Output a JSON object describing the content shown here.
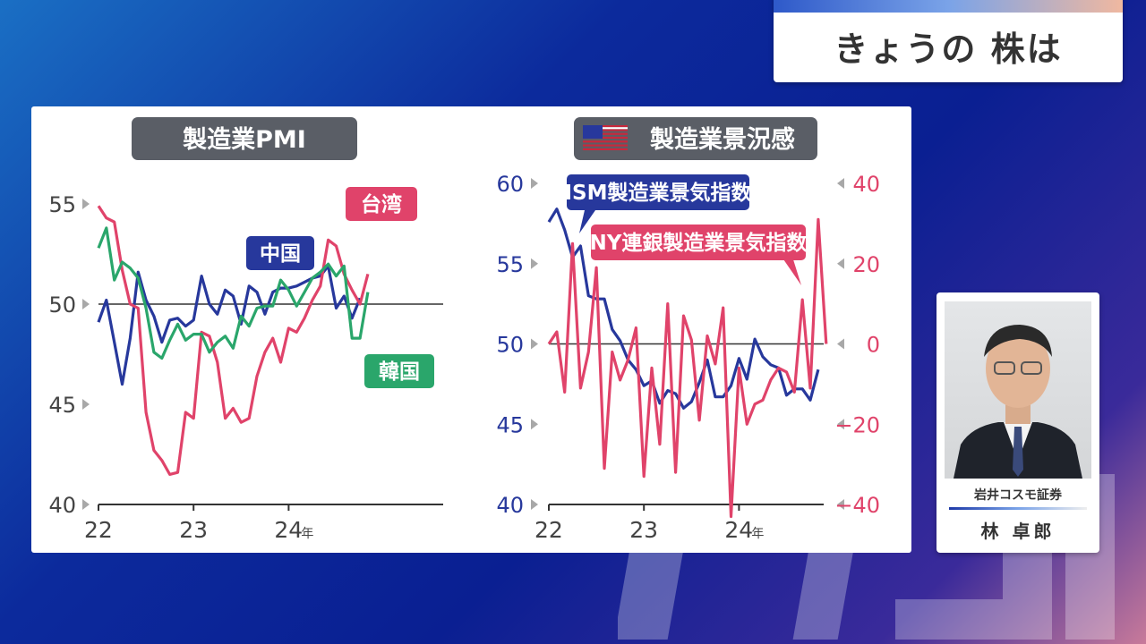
{
  "page_title": "きょうの 株は",
  "person": {
    "company": "岩井コスモ証券",
    "name": "林 卓郎"
  },
  "chart_data": [
    {
      "type": "line",
      "title": "製造業PMI",
      "x_ticks": [
        "22",
        "23",
        "24年"
      ],
      "y_ticks": [
        "55",
        "50",
        "45",
        "40"
      ],
      "ylim": [
        40,
        55
      ],
      "reference_line": 50,
      "x_start": "2022-01",
      "series": [
        {
          "name": "中国",
          "color": "#27389c",
          "values": [
            49.1,
            50.2,
            48.1,
            46.0,
            48.3,
            51.6,
            50.2,
            49.4,
            48.1,
            49.2,
            49.3,
            48.9,
            49.2,
            51.4,
            50.0,
            49.5,
            50.7,
            50.4,
            49.0,
            50.9,
            50.6,
            49.5,
            50.6,
            50.8,
            50.8,
            50.9,
            51.1,
            51.3,
            51.4,
            51.9,
            49.8,
            50.4,
            49.3,
            50.3
          ]
        },
        {
          "name": "台湾",
          "color": "#e0436a",
          "values": [
            54.9,
            54.3,
            54.1,
            51.7,
            50.0,
            49.8,
            44.6,
            42.7,
            42.2,
            41.5,
            41.6,
            44.6,
            44.3,
            48.6,
            48.4,
            47.1,
            44.3,
            44.8,
            44.1,
            44.3,
            46.4,
            47.6,
            48.3,
            47.1,
            48.8,
            48.6,
            49.3,
            50.2,
            50.9,
            53.2,
            52.9,
            51.5,
            50.7,
            50.0,
            51.5
          ]
        },
        {
          "name": "韓国",
          "color": "#2aa66b",
          "values": [
            52.8,
            53.8,
            51.2,
            52.1,
            51.8,
            51.3,
            49.8,
            47.6,
            47.3,
            48.2,
            49.0,
            48.2,
            48.5,
            48.5,
            47.6,
            48.1,
            48.4,
            47.8,
            49.4,
            48.9,
            49.8,
            49.9,
            49.9,
            51.2,
            50.7,
            49.9,
            50.6,
            51.3,
            51.6,
            52.0,
            51.4,
            51.9,
            48.3,
            48.3,
            50.6
          ]
        }
      ]
    },
    {
      "type": "line",
      "title": "製造業景況感",
      "title_icon": "us-flag-icon",
      "x_ticks": [
        "22",
        "23",
        "24年"
      ],
      "y_left_ticks": [
        "60",
        "55",
        "50",
        "45",
        "40"
      ],
      "y_right_ticks": [
        "40",
        "20",
        "0",
        "−20",
        "−40"
      ],
      "ylim_left": [
        40,
        60
      ],
      "ylim_right": [
        -40,
        40
      ],
      "reference_line": 0,
      "x_start": "2022-01",
      "series": [
        {
          "name": "ISM製造業景気指数",
          "color": "#27389c",
          "axis": "left",
          "values": [
            57.6,
            58.4,
            57.1,
            55.4,
            56.1,
            53.0,
            52.8,
            52.8,
            50.9,
            50.2,
            49.0,
            48.4,
            47.4,
            47.7,
            46.3,
            47.1,
            46.9,
            46.0,
            46.4,
            47.6,
            49.0,
            46.7,
            46.7,
            47.4,
            49.1,
            47.8,
            50.3,
            49.2,
            48.7,
            48.5,
            46.8,
            47.2,
            47.2,
            46.5,
            48.4
          ]
        },
        {
          "name": "NY連銀製造業景気指数",
          "color": "#e0436a",
          "axis": "right",
          "values": [
            0,
            3,
            -12,
            25,
            -11,
            -2,
            19,
            -31,
            -2,
            -9,
            -4,
            4,
            -33,
            -6,
            -25,
            10,
            -32,
            7,
            1,
            -19,
            2,
            -5,
            9,
            -43,
            -6,
            -20,
            -15,
            -14,
            -9,
            -6,
            -7,
            -12,
            11,
            -11,
            31,
            0
          ]
        }
      ]
    }
  ]
}
